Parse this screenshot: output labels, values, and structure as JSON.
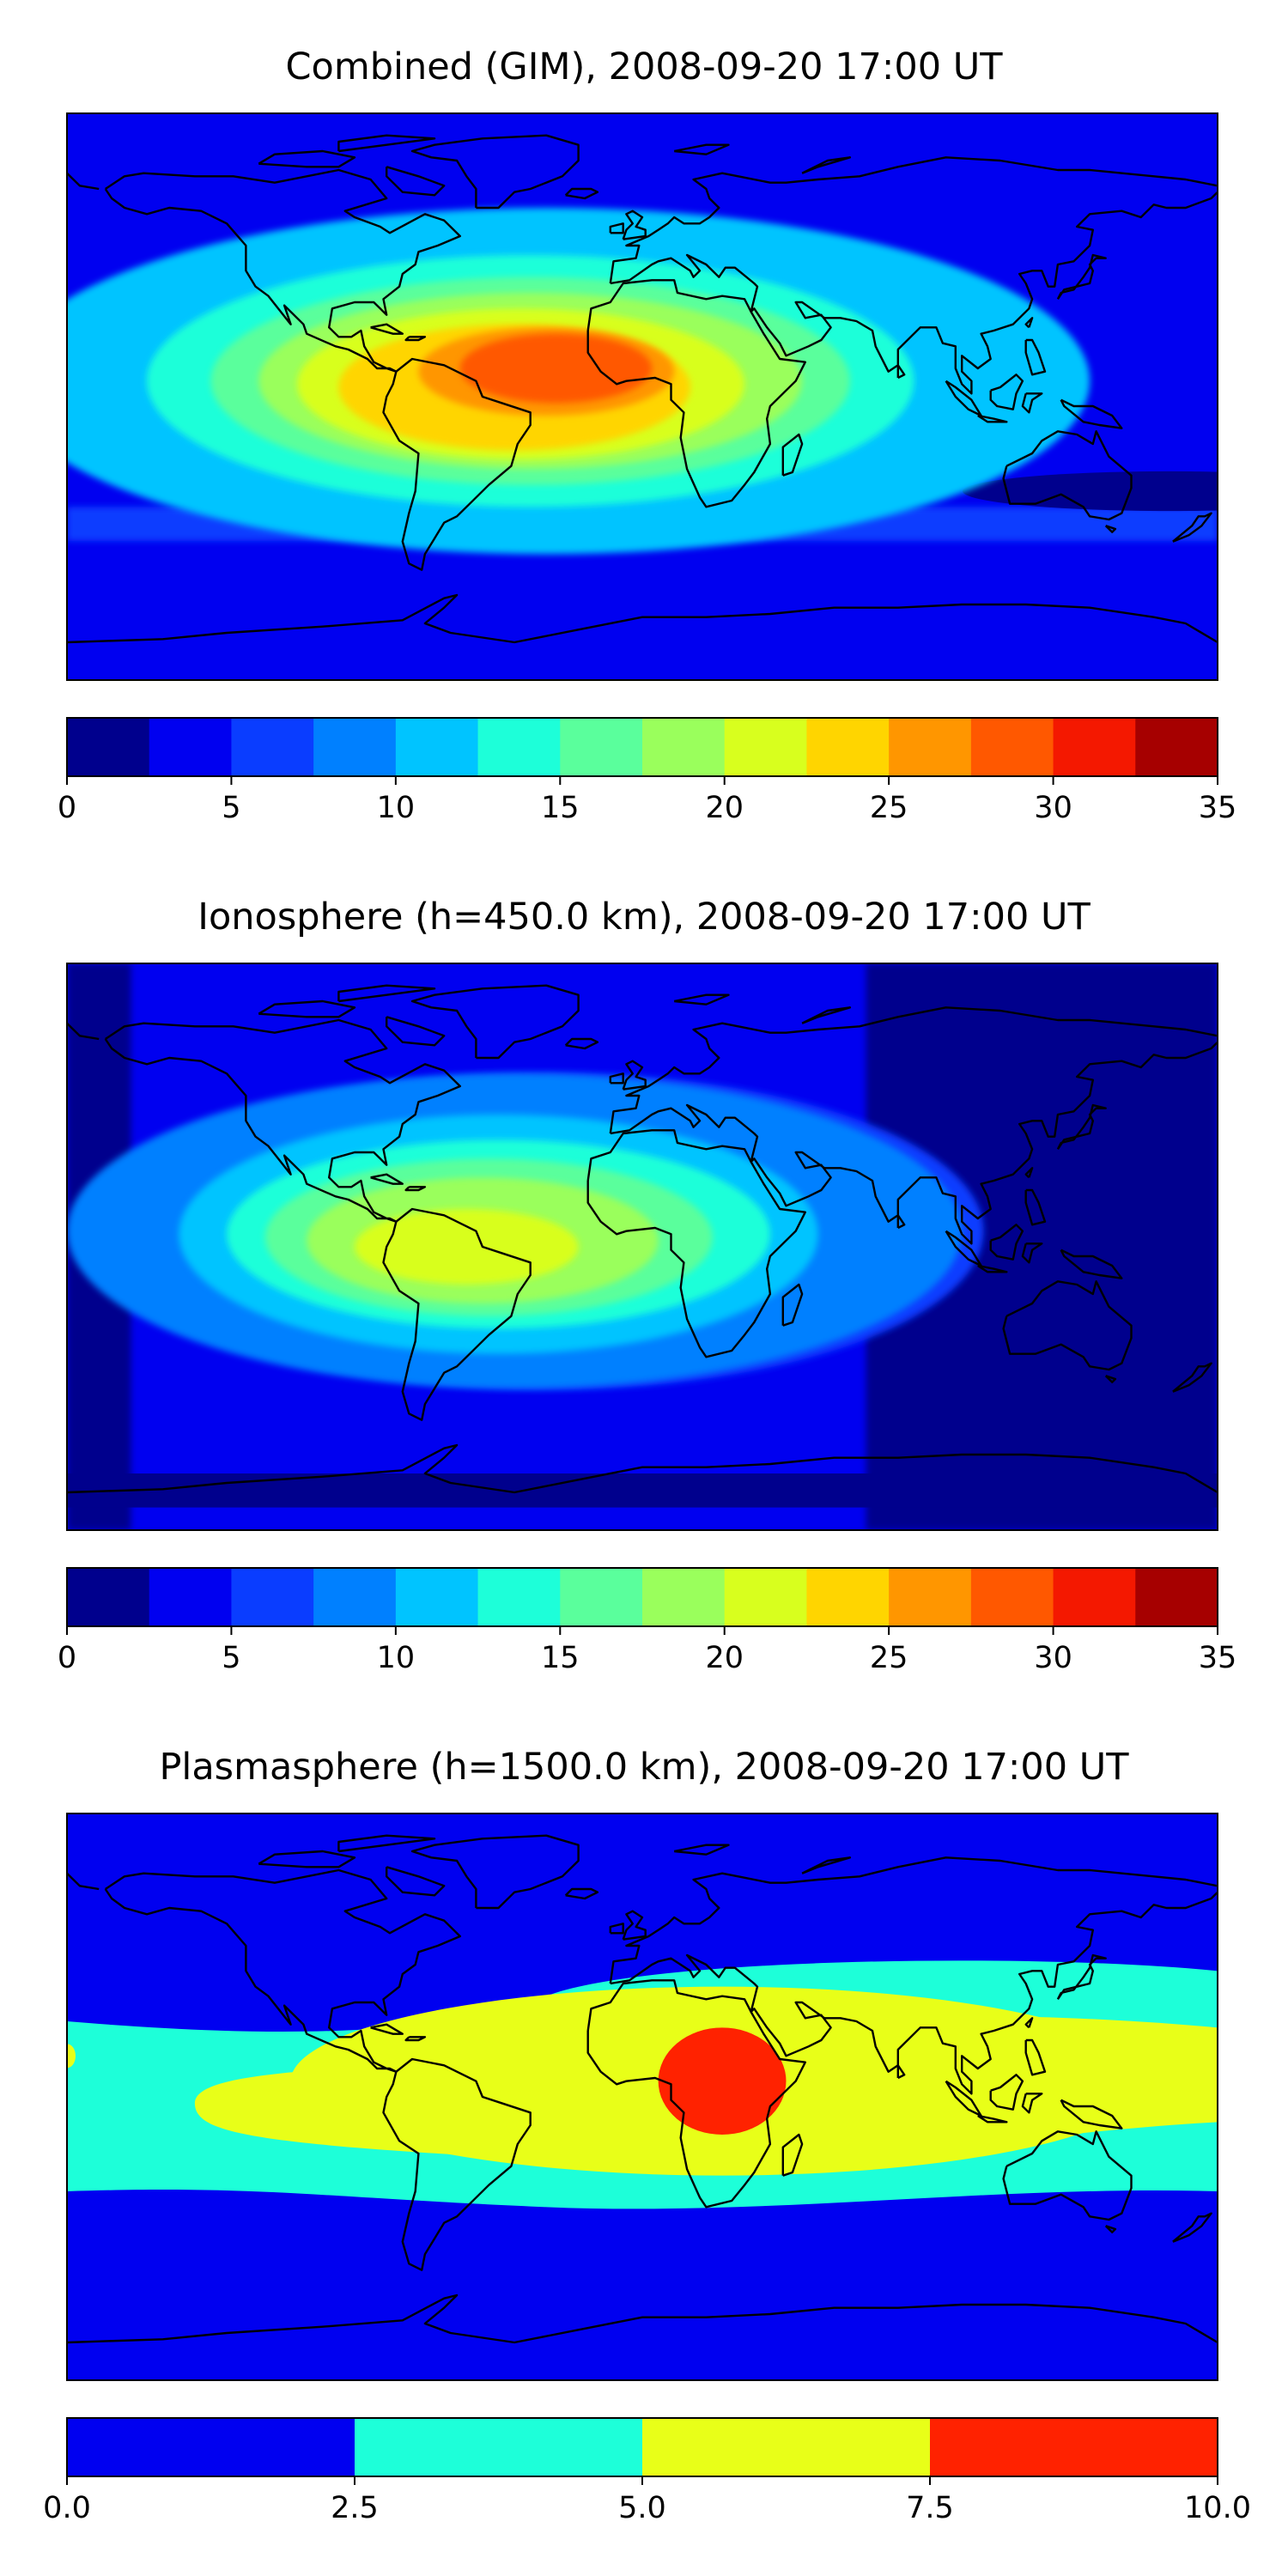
{
  "panels": [
    {
      "title": "Combined (GIM), 2008-09-20 17:00 UT",
      "colorbar": {
        "ticks": [
          "0",
          "5",
          "10",
          "15",
          "20",
          "25",
          "30",
          "35"
        ],
        "bins": [
          "#00008d",
          "#0000f0",
          "#0a3dff",
          "#0080ff",
          "#00c4ff",
          "#1dffd9",
          "#5aff9c",
          "#9aff5c",
          "#d8ff1e",
          "#ffd500",
          "#ff9600",
          "#ff5800",
          "#f41800",
          "#a60000"
        ]
      },
      "blobs": [
        {
          "lon": -30,
          "lat": 5,
          "rx": 170,
          "ry": 55,
          "level": 4
        },
        {
          "lon": -35,
          "lat": 5,
          "rx": 120,
          "ry": 40,
          "level": 5
        },
        {
          "lon": -35,
          "lat": 5,
          "rx": 100,
          "ry": 33,
          "level": 6
        },
        {
          "lon": -35,
          "lat": 5,
          "rx": 85,
          "ry": 28,
          "level": 7
        },
        {
          "lon": -38,
          "lat": 4,
          "rx": 70,
          "ry": 24,
          "level": 8
        },
        {
          "lon": -40,
          "lat": 3,
          "rx": 55,
          "ry": 20,
          "level": 9
        },
        {
          "lon": -30,
          "lat": 8,
          "rx": 40,
          "ry": 14,
          "level": 10
        },
        {
          "lon": -27,
          "lat": 9,
          "rx": 30,
          "ry": 11,
          "level": 11
        }
      ]
    },
    {
      "title": "Ionosphere  (h=450.0 km), 2008-09-20 17:00 UT",
      "colorbar": {
        "ticks": [
          "0",
          "5",
          "10",
          "15",
          "20",
          "25",
          "30",
          "35"
        ],
        "bins": [
          "#00008d",
          "#0000f0",
          "#0a3dff",
          "#0080ff",
          "#00c4ff",
          "#1dffd9",
          "#5aff9c",
          "#9aff5c",
          "#d8ff1e",
          "#ffd500",
          "#ff9600",
          "#ff5800",
          "#f41800",
          "#a60000"
        ]
      },
      "blobs": [
        {
          "lon": -40,
          "lat": 5,
          "rx": 140,
          "ry": 50,
          "level": 3
        },
        {
          "lon": -45,
          "lat": 4,
          "rx": 100,
          "ry": 38,
          "level": 4
        },
        {
          "lon": -45,
          "lat": 4,
          "rx": 85,
          "ry": 30,
          "level": 5
        },
        {
          "lon": -48,
          "lat": 3,
          "rx": 70,
          "ry": 25,
          "level": 6
        },
        {
          "lon": -50,
          "lat": 2,
          "rx": 55,
          "ry": 20,
          "level": 7
        },
        {
          "lon": -55,
          "lat": 0,
          "rx": 35,
          "ry": 12,
          "level": 8
        }
      ]
    },
    {
      "title": "Plasmasphere (h=1500.0 km), 2008-09-20 17:00 UT",
      "colorbar": {
        "ticks": [
          "0.0",
          "2.5",
          "5.0",
          "7.5",
          "10.0"
        ],
        "bins": [
          "#0000f0",
          "#1dffd9",
          "#e8ff18",
          "#ff2200"
        ]
      },
      "blobs": [
        {
          "lon": 25,
          "lat": 5,
          "rx": 135,
          "ry": 30,
          "level": 2
        },
        {
          "lon": 25,
          "lat": 5,
          "rx": 20,
          "ry": 17,
          "level": 3
        }
      ]
    }
  ]
}
